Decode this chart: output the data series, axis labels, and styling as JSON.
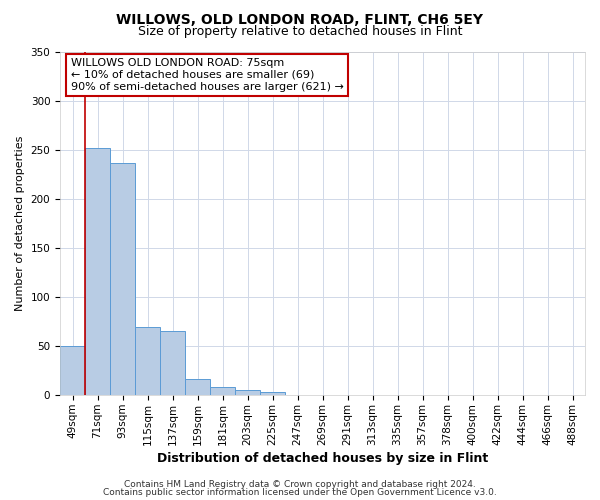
{
  "title": "WILLOWS, OLD LONDON ROAD, FLINT, CH6 5EY",
  "subtitle": "Size of property relative to detached houses in Flint",
  "xlabel": "Distribution of detached houses by size in Flint",
  "ylabel": "Number of detached properties",
  "bin_labels": [
    "49sqm",
    "71sqm",
    "93sqm",
    "115sqm",
    "137sqm",
    "159sqm",
    "181sqm",
    "203sqm",
    "225sqm",
    "247sqm",
    "269sqm",
    "291sqm",
    "313sqm",
    "335sqm",
    "357sqm",
    "378sqm",
    "400sqm",
    "422sqm",
    "444sqm",
    "466sqm",
    "488sqm"
  ],
  "bar_heights": [
    50,
    252,
    236,
    70,
    65,
    17,
    8,
    5,
    3,
    0,
    0,
    0,
    0,
    0,
    0,
    0,
    0,
    0,
    0,
    0,
    0
  ],
  "bar_color": "#b8cce4",
  "bar_edge_color": "#5b9bd5",
  "vline_color": "#c00000",
  "ylim": [
    0,
    350
  ],
  "yticks": [
    0,
    50,
    100,
    150,
    200,
    250,
    300,
    350
  ],
  "annotation_title": "WILLOWS OLD LONDON ROAD: 75sqm",
  "annotation_line2": "← 10% of detached houses are smaller (69)",
  "annotation_line3": "90% of semi-detached houses are larger (621) →",
  "annotation_box_color": "#ffffff",
  "annotation_box_edge_color": "#c00000",
  "footer_line1": "Contains HM Land Registry data © Crown copyright and database right 2024.",
  "footer_line2": "Contains public sector information licensed under the Open Government Licence v3.0.",
  "background_color": "#ffffff",
  "grid_color": "#d0d8e8",
  "title_fontsize": 10,
  "subtitle_fontsize": 9,
  "xlabel_fontsize": 9,
  "ylabel_fontsize": 8,
  "tick_fontsize": 7.5,
  "footer_fontsize": 6.5,
  "annotation_fontsize": 8
}
